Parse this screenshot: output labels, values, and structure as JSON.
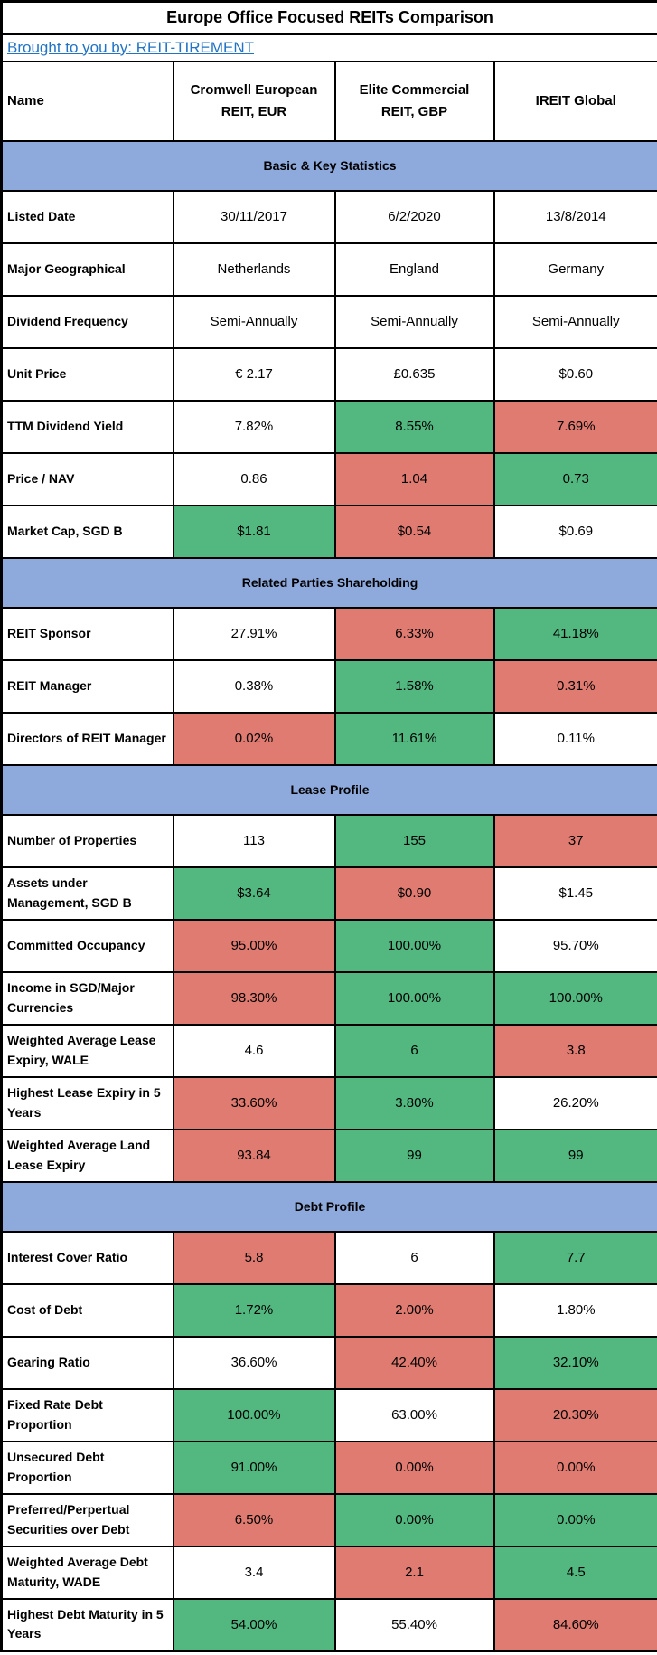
{
  "title": "Europe Office Focused REITs Comparison",
  "subtitle_link": "Brought to you by: REIT-TIREMENT",
  "columns": [
    "Name",
    "Cromwell European REIT, EUR",
    "Elite Commercial REIT, GBP",
    "IREIT Global"
  ],
  "colors": {
    "green": "#53b880",
    "red": "#e07b71",
    "section_header_bg": "#8ea9db",
    "link_blue": "#2273c4",
    "border_black": "#000000"
  },
  "sections": [
    {
      "title": "Basic & Key Statistics",
      "rows": [
        {
          "label": "Listed Date",
          "cells": [
            {
              "text": "30/11/2017",
              "bg": "white"
            },
            {
              "text": "6/2/2020",
              "bg": "white"
            },
            {
              "text": "13/8/2014",
              "bg": "white"
            }
          ]
        },
        {
          "label": "Major Geographical",
          "cells": [
            {
              "text": "Netherlands",
              "bg": "white"
            },
            {
              "text": "England",
              "bg": "white"
            },
            {
              "text": "Germany",
              "bg": "white"
            }
          ]
        },
        {
          "label": "Dividend Frequency",
          "cells": [
            {
              "text": "Semi-Annually",
              "bg": "white"
            },
            {
              "text": "Semi-Annually",
              "bg": "white"
            },
            {
              "text": "Semi-Annually",
              "bg": "white"
            }
          ]
        },
        {
          "label": "Unit Price",
          "cells": [
            {
              "text": "€ 2.17",
              "bg": "white"
            },
            {
              "text": "£0.635",
              "bg": "white"
            },
            {
              "text": "$0.60",
              "bg": "white"
            }
          ]
        },
        {
          "label": "TTM Dividend Yield",
          "cells": [
            {
              "text": "7.82%",
              "bg": "white"
            },
            {
              "text": "8.55%",
              "bg": "green"
            },
            {
              "text": "7.69%",
              "bg": "red"
            }
          ]
        },
        {
          "label": "Price / NAV",
          "cells": [
            {
              "text": "0.86",
              "bg": "white"
            },
            {
              "text": "1.04",
              "bg": "red"
            },
            {
              "text": "0.73",
              "bg": "green"
            }
          ]
        },
        {
          "label": "Market Cap, SGD B",
          "cells": [
            {
              "text": "$1.81",
              "bg": "green"
            },
            {
              "text": "$0.54",
              "bg": "red"
            },
            {
              "text": "$0.69",
              "bg": "white"
            }
          ]
        }
      ]
    },
    {
      "title": "Related Parties Shareholding",
      "rows": [
        {
          "label": "REIT Sponsor",
          "cells": [
            {
              "text": "27.91%",
              "bg": "white"
            },
            {
              "text": "6.33%",
              "bg": "red"
            },
            {
              "text": "41.18%",
              "bg": "green"
            }
          ]
        },
        {
          "label": "REIT Manager",
          "cells": [
            {
              "text": "0.38%",
              "bg": "white"
            },
            {
              "text": "1.58%",
              "bg": "green"
            },
            {
              "text": "0.31%",
              "bg": "red"
            }
          ]
        },
        {
          "label": "Directors of REIT Manager",
          "cells": [
            {
              "text": "0.02%",
              "bg": "red"
            },
            {
              "text": "11.61%",
              "bg": "green"
            },
            {
              "text": "0.11%",
              "bg": "white"
            }
          ]
        }
      ]
    },
    {
      "title": "Lease Profile",
      "rows": [
        {
          "label": "Number of Properties",
          "cells": [
            {
              "text": "113",
              "bg": "white"
            },
            {
              "text": "155",
              "bg": "green"
            },
            {
              "text": "37",
              "bg": "red"
            }
          ]
        },
        {
          "label": "Assets under Management, SGD B",
          "cells": [
            {
              "text": "$3.64",
              "bg": "green"
            },
            {
              "text": "$0.90",
              "bg": "red"
            },
            {
              "text": "$1.45",
              "bg": "white"
            }
          ]
        },
        {
          "label": "Committed Occupancy",
          "cells": [
            {
              "text": "95.00%",
              "bg": "red"
            },
            {
              "text": "100.00%",
              "bg": "green"
            },
            {
              "text": "95.70%",
              "bg": "white"
            }
          ]
        },
        {
          "label": "Income in SGD/Major Currencies",
          "cells": [
            {
              "text": "98.30%",
              "bg": "red"
            },
            {
              "text": "100.00%",
              "bg": "green"
            },
            {
              "text": "100.00%",
              "bg": "green"
            }
          ]
        },
        {
          "label": "Weighted Average Lease Expiry, WALE",
          "cells": [
            {
              "text": "4.6",
              "bg": "white"
            },
            {
              "text": "6",
              "bg": "green"
            },
            {
              "text": "3.8",
              "bg": "red"
            }
          ]
        },
        {
          "label": "Highest Lease Expiry in 5 Years",
          "cells": [
            {
              "text": "33.60%",
              "bg": "red"
            },
            {
              "text": "3.80%",
              "bg": "green"
            },
            {
              "text": "26.20%",
              "bg": "white"
            }
          ]
        },
        {
          "label": "Weighted Average Land Lease Expiry",
          "cells": [
            {
              "text": "93.84",
              "bg": "red"
            },
            {
              "text": "99",
              "bg": "green"
            },
            {
              "text": "99",
              "bg": "green"
            }
          ]
        }
      ]
    },
    {
      "title": "Debt Profile",
      "rows": [
        {
          "label": "Interest Cover Ratio",
          "cells": [
            {
              "text": "5.8",
              "bg": "red"
            },
            {
              "text": "6",
              "bg": "white"
            },
            {
              "text": "7.7",
              "bg": "green"
            }
          ]
        },
        {
          "label": "Cost of Debt",
          "cells": [
            {
              "text": "1.72%",
              "bg": "green"
            },
            {
              "text": "2.00%",
              "bg": "red"
            },
            {
              "text": "1.80%",
              "bg": "white"
            }
          ]
        },
        {
          "label": "Gearing Ratio",
          "cells": [
            {
              "text": "36.60%",
              "bg": "white"
            },
            {
              "text": "42.40%",
              "bg": "red"
            },
            {
              "text": "32.10%",
              "bg": "green"
            }
          ]
        },
        {
          "label": "Fixed Rate Debt Proportion",
          "cells": [
            {
              "text": "100.00%",
              "bg": "green"
            },
            {
              "text": "63.00%",
              "bg": "white"
            },
            {
              "text": "20.30%",
              "bg": "red"
            }
          ]
        },
        {
          "label": "Unsecured Debt Proportion",
          "cells": [
            {
              "text": "91.00%",
              "bg": "green"
            },
            {
              "text": "0.00%",
              "bg": "red"
            },
            {
              "text": "0.00%",
              "bg": "red"
            }
          ]
        },
        {
          "label": "Preferred/Perpertual Securities over Debt",
          "cells": [
            {
              "text": "6.50%",
              "bg": "red"
            },
            {
              "text": "0.00%",
              "bg": "green"
            },
            {
              "text": "0.00%",
              "bg": "green"
            }
          ]
        },
        {
          "label": "Weighted Average Debt Maturity, WADE",
          "cells": [
            {
              "text": "3.4",
              "bg": "white"
            },
            {
              "text": "2.1",
              "bg": "red"
            },
            {
              "text": "4.5",
              "bg": "green"
            }
          ]
        },
        {
          "label": "Highest Debt Maturity in 5 Years",
          "cells": [
            {
              "text": "54.00%",
              "bg": "green"
            },
            {
              "text": "55.40%",
              "bg": "white"
            },
            {
              "text": "84.60%",
              "bg": "red"
            }
          ]
        }
      ]
    }
  ]
}
